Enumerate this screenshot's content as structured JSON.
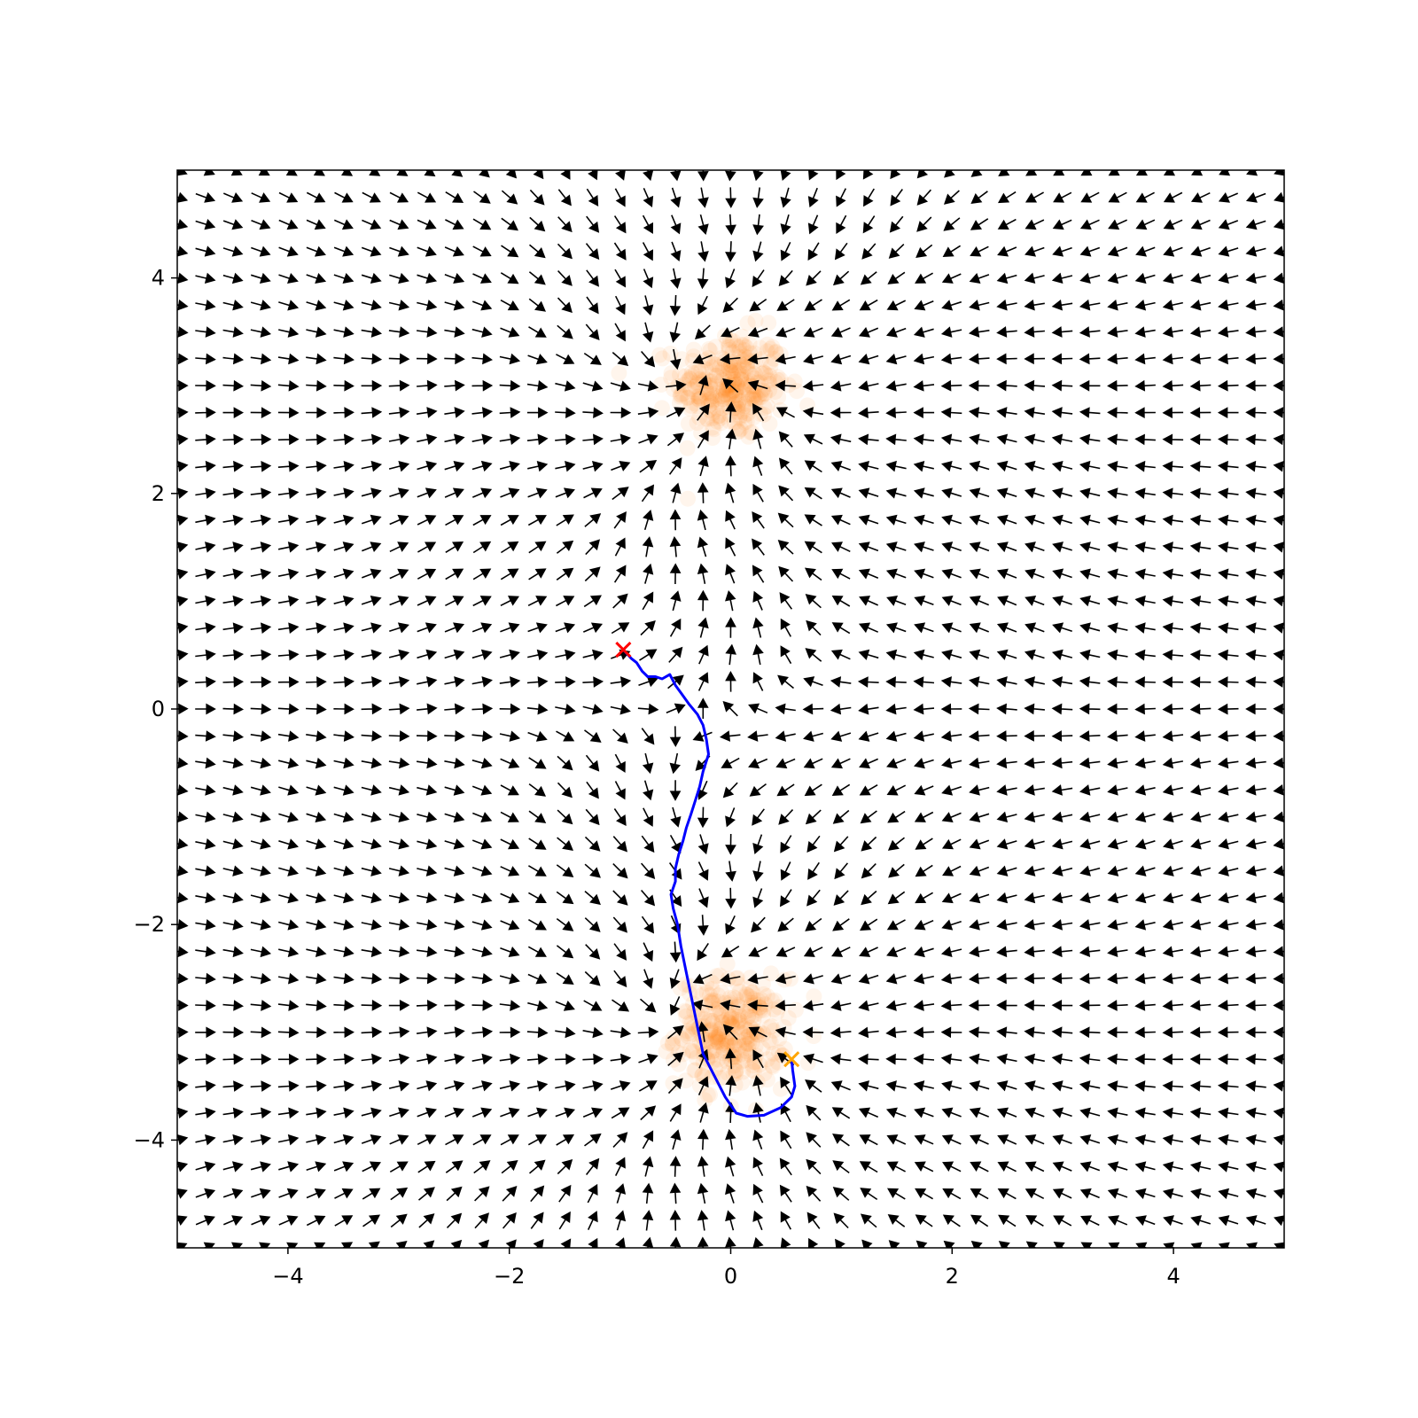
{
  "chart_data": {
    "type": "scatter",
    "title": "",
    "xlabel": "",
    "ylabel": "",
    "xlim": [
      -5,
      5
    ],
    "ylim": [
      -5,
      5
    ],
    "grid": false,
    "legend": "none",
    "xticks": [
      {
        "value": -4,
        "label": "−4"
      },
      {
        "value": -2,
        "label": "−2"
      },
      {
        "value": 0,
        "label": "0"
      },
      {
        "value": 2,
        "label": "2"
      },
      {
        "value": 4,
        "label": "4"
      }
    ],
    "yticks": [
      {
        "value": -4,
        "label": "−4"
      },
      {
        "value": -2,
        "label": "−2"
      },
      {
        "value": 0,
        "label": "0"
      },
      {
        "value": 2,
        "label": "2"
      },
      {
        "value": 4,
        "label": "4"
      }
    ],
    "vector_field": {
      "type": "quiver",
      "color": "#000000",
      "x_range": [
        -5,
        5
      ],
      "y_range": [
        -5,
        5
      ],
      "grid_count": 41
    },
    "clusters": [
      {
        "center": [
          0.0,
          3.0
        ],
        "std": 0.25,
        "count": 300,
        "color": "#ff7f0e",
        "alpha": 0.08
      },
      {
        "center": [
          0.0,
          -3.0
        ],
        "std": 0.25,
        "count": 300,
        "color": "#ff7f0e",
        "alpha": 0.08
      }
    ],
    "trajectory": {
      "color": "#0000ff",
      "points": [
        [
          -0.97,
          0.55
        ],
        [
          -0.9,
          0.47
        ],
        [
          -0.85,
          0.43
        ],
        [
          -0.8,
          0.35
        ],
        [
          -0.75,
          0.3
        ],
        [
          -0.68,
          0.3
        ],
        [
          -0.62,
          0.28
        ],
        [
          -0.55,
          0.32
        ],
        [
          -0.5,
          0.22
        ],
        [
          -0.45,
          0.15
        ],
        [
          -0.38,
          0.05
        ],
        [
          -0.3,
          -0.05
        ],
        [
          -0.25,
          -0.15
        ],
        [
          -0.22,
          -0.28
        ],
        [
          -0.2,
          -0.42
        ],
        [
          -0.25,
          -0.58
        ],
        [
          -0.28,
          -0.72
        ],
        [
          -0.32,
          -0.85
        ],
        [
          -0.36,
          -0.98
        ],
        [
          -0.4,
          -1.1
        ],
        [
          -0.43,
          -1.22
        ],
        [
          -0.47,
          -1.35
        ],
        [
          -0.5,
          -1.48
        ],
        [
          -0.5,
          -1.6
        ],
        [
          -0.54,
          -1.72
        ],
        [
          -0.52,
          -1.85
        ],
        [
          -0.48,
          -2.0
        ],
        [
          -0.45,
          -2.2
        ],
        [
          -0.4,
          -2.45
        ],
        [
          -0.35,
          -2.7
        ],
        [
          -0.3,
          -2.95
        ],
        [
          -0.25,
          -3.2
        ],
        [
          -0.15,
          -3.4
        ],
        [
          -0.05,
          -3.6
        ],
        [
          0.05,
          -3.75
        ],
        [
          0.15,
          -3.78
        ],
        [
          0.3,
          -3.77
        ],
        [
          0.45,
          -3.7
        ],
        [
          0.55,
          -3.6
        ],
        [
          0.58,
          -3.5
        ],
        [
          0.56,
          -3.35
        ],
        [
          0.55,
          -3.25
        ]
      ]
    },
    "start_marker": {
      "point": [
        -0.97,
        0.55
      ],
      "color": "#ff0000",
      "symbol": "x"
    },
    "end_marker": {
      "point": [
        0.55,
        -3.25
      ],
      "color": "#ffa500",
      "symbol": "x"
    }
  }
}
